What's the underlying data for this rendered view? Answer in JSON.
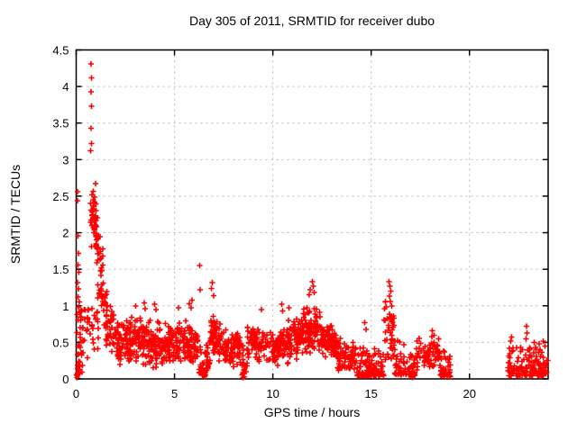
{
  "chart_data": {
    "type": "scatter",
    "title": "Day 305 of 2011, SRMTID for receiver dubo",
    "xlabel": "GPS time / hours",
    "ylabel": "SRMTID / TECUs",
    "xlim": [
      0,
      24
    ],
    "ylim": [
      0,
      4.5
    ],
    "xticks": [
      0,
      5,
      10,
      15,
      20
    ],
    "yticks": [
      0,
      0.5,
      1,
      1.5,
      2,
      2.5,
      3,
      3.5,
      4,
      4.5
    ],
    "grid": {
      "show": true,
      "color": "#b8b8b8",
      "dash": "2 4"
    },
    "legend": "none",
    "marker": {
      "shape": "plus",
      "color": "#ff0000",
      "half_size": 3.1,
      "stroke_width": 1.6
    },
    "border_color": "#000000",
    "background": "#ffffff",
    "seed": 7,
    "notable_points": [
      [
        0.75,
        4.31
      ],
      [
        0.78,
        4.12
      ],
      [
        0.76,
        3.93
      ],
      [
        0.78,
        3.73
      ],
      [
        0.76,
        3.43
      ],
      [
        0.77,
        3.22
      ],
      [
        0.74,
        3.12
      ],
      [
        0.98,
        2.67
      ],
      [
        0.88,
        2.57
      ],
      [
        0.8,
        2.52
      ],
      [
        0.93,
        2.49
      ],
      [
        0.86,
        2.45
      ],
      [
        0.95,
        2.42
      ],
      [
        0.9,
        2.36
      ],
      [
        1.0,
        2.3
      ],
      [
        0.07,
        2.56
      ],
      [
        0.06,
        2.44
      ],
      [
        0.1,
        1.96
      ],
      [
        0.12,
        1.72
      ],
      [
        0.09,
        1.56
      ],
      [
        0.14,
        1.46
      ],
      [
        0.08,
        1.32
      ],
      [
        0.12,
        1.23
      ],
      [
        0.1,
        1.12
      ],
      [
        0.16,
        1.05
      ],
      [
        0.04,
        0.02
      ],
      [
        0.06,
        0.05
      ],
      [
        8.48,
        0.02
      ],
      [
        8.55,
        0.03
      ],
      [
        17.1,
        0.02
      ],
      [
        17.15,
        0.04
      ],
      [
        6.27,
        1.55
      ],
      [
        6.3,
        1.22
      ],
      [
        6.93,
        1.32
      ],
      [
        6.88,
        1.24
      ],
      [
        7.0,
        1.14
      ],
      [
        3.02,
        1.0
      ],
      [
        3.45,
        1.04
      ],
      [
        3.5,
        0.96
      ],
      [
        3.98,
        1.02
      ],
      [
        4.05,
        0.95
      ],
      [
        5.2,
        0.97
      ],
      [
        5.75,
        1.03
      ],
      [
        5.9,
        1.08
      ],
      [
        5.85,
        0.97
      ],
      [
        9.42,
        0.95
      ],
      [
        10.45,
        1.02
      ],
      [
        10.5,
        0.93
      ],
      [
        10.82,
        0.97
      ],
      [
        11.85,
        1.15
      ],
      [
        11.9,
        1.22
      ],
      [
        12.0,
        1.33
      ],
      [
        12.05,
        1.27
      ],
      [
        12.1,
        1.18
      ],
      [
        15.9,
        1.33
      ],
      [
        15.95,
        1.27
      ],
      [
        16.0,
        1.2
      ],
      [
        15.92,
        1.13
      ],
      [
        15.98,
        1.06
      ],
      [
        16.05,
        1.0
      ],
      [
        14.68,
        0.77
      ],
      [
        14.73,
        0.68
      ],
      [
        18.08,
        0.58
      ],
      [
        18.12,
        0.66
      ],
      [
        18.2,
        0.6
      ],
      [
        22.15,
        0.57
      ],
      [
        22.1,
        0.52
      ],
      [
        22.9,
        0.72
      ],
      [
        22.92,
        0.63
      ],
      [
        22.88,
        0.55
      ],
      [
        23.3,
        0.5
      ],
      [
        23.55,
        0.48
      ],
      [
        23.75,
        0.52
      ],
      [
        23.85,
        0.45
      ]
    ],
    "clusters": [
      {
        "x0": 0.02,
        "x1": 0.35,
        "n": 48,
        "y0": [
          0.05,
          1.05
        ],
        "y1": [
          0.1,
          0.95
        ],
        "shape": "low"
      },
      {
        "x0": 0.35,
        "x1": 0.72,
        "n": 14,
        "y0": [
          0.25,
          0.95
        ],
        "y1": [
          0.3,
          0.95
        ],
        "shape": "uni"
      },
      {
        "x0": 0.72,
        "x1": 1.08,
        "n": 34,
        "y0": [
          1.75,
          2.55
        ],
        "y1": [
          1.7,
          2.45
        ],
        "shape": "tri"
      },
      {
        "x0": 1.0,
        "x1": 1.4,
        "n": 24,
        "y0": [
          1.5,
          2.25
        ],
        "y1": [
          1.15,
          1.8
        ],
        "shape": "tri"
      },
      {
        "x0": 0.78,
        "x1": 1.15,
        "n": 16,
        "y0": [
          0.35,
          1.0
        ],
        "y1": [
          0.4,
          1.0
        ],
        "shape": "uni"
      },
      {
        "x0": 1.1,
        "x1": 1.75,
        "n": 38,
        "y0": [
          0.8,
          1.65
        ],
        "y1": [
          0.5,
          1.15
        ],
        "shape": "tri"
      },
      {
        "x0": 1.5,
        "x1": 2.25,
        "n": 50,
        "y0": [
          0.3,
          1.05
        ],
        "y1": [
          0.2,
          0.8
        ],
        "shape": "tri"
      },
      {
        "x0": 2.1,
        "x1": 3.25,
        "n": 105,
        "y0": [
          0.15,
          0.8
        ],
        "y1": [
          0.2,
          0.9
        ],
        "shape": "tri"
      },
      {
        "x0": 3.25,
        "x1": 4.3,
        "n": 105,
        "y0": [
          0.15,
          0.9
        ],
        "y1": [
          0.1,
          0.85
        ],
        "shape": "tri"
      },
      {
        "x0": 4.3,
        "x1": 5.05,
        "n": 70,
        "y0": [
          0.1,
          0.8
        ],
        "y1": [
          0.2,
          0.85
        ],
        "shape": "tri"
      },
      {
        "x0": 5.05,
        "x1": 6.2,
        "n": 100,
        "y0": [
          0.15,
          0.9
        ],
        "y1": [
          0.15,
          0.8
        ],
        "shape": "tri"
      },
      {
        "x0": 6.25,
        "x1": 6.55,
        "n": 26,
        "y0": [
          0.08,
          0.55
        ],
        "y1": [
          0.03,
          0.3
        ],
        "shape": "low"
      },
      {
        "x0": 6.55,
        "x1": 6.82,
        "n": 26,
        "y0": [
          0.03,
          0.35
        ],
        "y1": [
          0.25,
          0.75
        ],
        "shape": "low"
      },
      {
        "x0": 6.82,
        "x1": 7.2,
        "n": 48,
        "y0": [
          0.3,
          0.95
        ],
        "y1": [
          0.3,
          0.85
        ],
        "shape": "tri"
      },
      {
        "x0": 7.2,
        "x1": 8.35,
        "n": 95,
        "y0": [
          0.15,
          0.8
        ],
        "y1": [
          0.15,
          0.65
        ],
        "shape": "tri"
      },
      {
        "x0": 8.38,
        "x1": 8.7,
        "n": 20,
        "y0": [
          0.05,
          0.5
        ],
        "y1": [
          0.1,
          0.55
        ],
        "shape": "low"
      },
      {
        "x0": 8.7,
        "x1": 9.65,
        "n": 75,
        "y0": [
          0.2,
          0.8
        ],
        "y1": [
          0.25,
          0.75
        ],
        "shape": "tri"
      },
      {
        "x0": 9.65,
        "x1": 10.7,
        "n": 80,
        "y0": [
          0.15,
          0.65
        ],
        "y1": [
          0.2,
          0.8
        ],
        "shape": "tri"
      },
      {
        "x0": 10.7,
        "x1": 11.55,
        "n": 80,
        "y0": [
          0.2,
          0.85
        ],
        "y1": [
          0.3,
          0.9
        ],
        "shape": "tri"
      },
      {
        "x0": 11.55,
        "x1": 12.45,
        "n": 100,
        "y0": [
          0.3,
          1.0
        ],
        "y1": [
          0.35,
          1.05
        ],
        "shape": "tri"
      },
      {
        "x0": 12.45,
        "x1": 13.25,
        "n": 80,
        "y0": [
          0.25,
          0.9
        ],
        "y1": [
          0.2,
          0.7
        ],
        "shape": "tri"
      },
      {
        "x0": 13.25,
        "x1": 14.25,
        "n": 80,
        "y0": [
          0.08,
          0.6
        ],
        "y1": [
          0.08,
          0.5
        ],
        "shape": "tri"
      },
      {
        "x0": 14.25,
        "x1": 15.65,
        "n": 105,
        "y0": [
          0.04,
          0.45
        ],
        "y1": [
          0.04,
          0.4
        ],
        "shape": "low"
      },
      {
        "x0": 15.65,
        "x1": 16.18,
        "n": 42,
        "y0": [
          0.25,
          1.1
        ],
        "y1": [
          0.2,
          0.9
        ],
        "shape": "uni"
      },
      {
        "x0": 16.18,
        "x1": 17.3,
        "n": 70,
        "y0": [
          0.06,
          0.55
        ],
        "y1": [
          0.05,
          0.42
        ],
        "shape": "low"
      },
      {
        "x0": 17.3,
        "x1": 18.5,
        "n": 75,
        "y0": [
          0.08,
          0.62
        ],
        "y1": [
          0.1,
          0.6
        ],
        "shape": "tri"
      },
      {
        "x0": 18.5,
        "x1": 19.1,
        "n": 42,
        "y0": [
          0.05,
          0.45
        ],
        "y1": [
          0.02,
          0.28
        ],
        "shape": "low"
      },
      {
        "x0": 21.95,
        "x1": 23.0,
        "n": 70,
        "y0": [
          0.04,
          0.42
        ],
        "y1": [
          0.05,
          0.45
        ],
        "shape": "low"
      },
      {
        "x0": 23.0,
        "x1": 24.0,
        "n": 85,
        "y0": [
          0.04,
          0.45
        ],
        "y1": [
          0.05,
          0.42
        ],
        "shape": "low"
      }
    ]
  }
}
